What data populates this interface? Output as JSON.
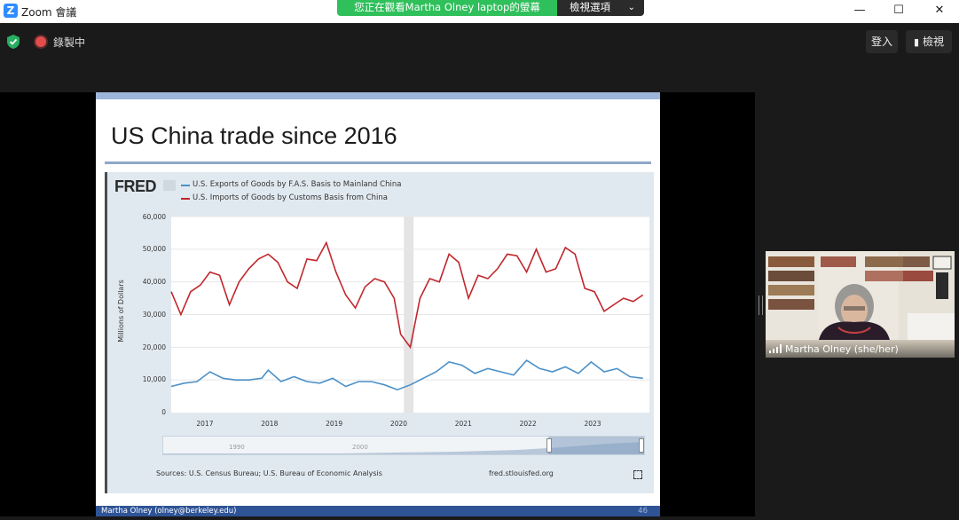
{
  "window": {
    "app_title": "Zoom 會議",
    "share_banner": "您正在觀看Martha  Olney  laptop的螢幕",
    "view_options": "檢視選項",
    "controls": {
      "minimize": "—",
      "maximize": "☐",
      "close": "✕"
    }
  },
  "toolbar": {
    "recording": "錄製中",
    "signin": "登入",
    "view": "檢視"
  },
  "slide": {
    "title": "US China trade since 2016",
    "footer_author": "Martha Olney (olney@berkeley.edu)",
    "footer_page": "46"
  },
  "chart_data": {
    "type": "line",
    "source_logo": "FRED",
    "legend": [
      "U.S. Exports of Goods by F.A.S. Basis to Mainland China",
      "U.S. Imports of Goods by Customs Basis from China"
    ],
    "ylabel": "Millions of Dollars",
    "yticks": [
      "60,000",
      "50,000",
      "40,000",
      "30,000",
      "20,000",
      "10,000",
      "0"
    ],
    "xticks": [
      "2017",
      "2018",
      "2019",
      "2020",
      "2021",
      "2022",
      "2023"
    ],
    "ylim": [
      0,
      60000
    ],
    "xlim": [
      2016.5,
      2023.9
    ],
    "recession_band": [
      2020.1,
      2020.25
    ],
    "series": [
      {
        "name": "U.S. Exports of Goods by F.A.S. Basis to Mainland China",
        "color": "#4a90c8",
        "x": [
          2016.5,
          2016.7,
          2016.9,
          2017.1,
          2017.3,
          2017.5,
          2017.7,
          2017.9,
          2018.0,
          2018.2,
          2018.4,
          2018.6,
          2018.8,
          2019.0,
          2019.2,
          2019.4,
          2019.6,
          2019.8,
          2020.0,
          2020.2,
          2020.4,
          2020.6,
          2020.8,
          2021.0,
          2021.2,
          2021.4,
          2021.6,
          2021.8,
          2022.0,
          2022.2,
          2022.4,
          2022.6,
          2022.8,
          2023.0,
          2023.2,
          2023.4,
          2023.6,
          2023.8
        ],
        "y": [
          8000,
          9000,
          9500,
          12500,
          10500,
          10000,
          10000,
          10500,
          13000,
          9500,
          11000,
          9500,
          9000,
          10500,
          8000,
          9500,
          9500,
          8500,
          7000,
          8500,
          10500,
          12500,
          15500,
          14500,
          12000,
          13500,
          12500,
          11500,
          16000,
          13500,
          12500,
          14000,
          12000,
          15500,
          12500,
          13500,
          11000,
          10500
        ]
      },
      {
        "name": "U.S. Imports of Goods by Customs Basis from China",
        "color": "#c1272d",
        "x": [
          2016.5,
          2016.65,
          2016.8,
          2016.95,
          2017.1,
          2017.25,
          2017.4,
          2017.55,
          2017.7,
          2017.85,
          2018.0,
          2018.15,
          2018.3,
          2018.45,
          2018.6,
          2018.75,
          2018.9,
          2019.05,
          2019.2,
          2019.35,
          2019.5,
          2019.65,
          2019.8,
          2019.95,
          2020.05,
          2020.2,
          2020.35,
          2020.5,
          2020.65,
          2020.8,
          2020.95,
          2021.1,
          2021.25,
          2021.4,
          2021.55,
          2021.7,
          2021.85,
          2022.0,
          2022.15,
          2022.3,
          2022.45,
          2022.6,
          2022.75,
          2022.9,
          2023.05,
          2023.2,
          2023.35,
          2023.5,
          2023.65,
          2023.8
        ],
        "y": [
          37000,
          30000,
          37000,
          39000,
          43000,
          42000,
          33000,
          40000,
          44000,
          47000,
          48500,
          46000,
          40000,
          38000,
          47000,
          46500,
          52000,
          43000,
          36000,
          32000,
          38500,
          41000,
          40000,
          35000,
          24000,
          20000,
          35000,
          41000,
          40000,
          48500,
          46000,
          35000,
          42000,
          41000,
          44000,
          48500,
          48000,
          43000,
          50000,
          43000,
          44000,
          50500,
          48500,
          38000,
          37000,
          31000,
          33000,
          35000,
          34000,
          36000
        ]
      }
    ],
    "slider_labels": [
      "1990",
      "2000"
    ],
    "sources": "Sources: U.S. Census Bureau; U.S. Bureau of Economic Analysis",
    "url": "fred.stlouisfed.org"
  },
  "webcam": {
    "participant": "Martha Olney (she/her)"
  }
}
